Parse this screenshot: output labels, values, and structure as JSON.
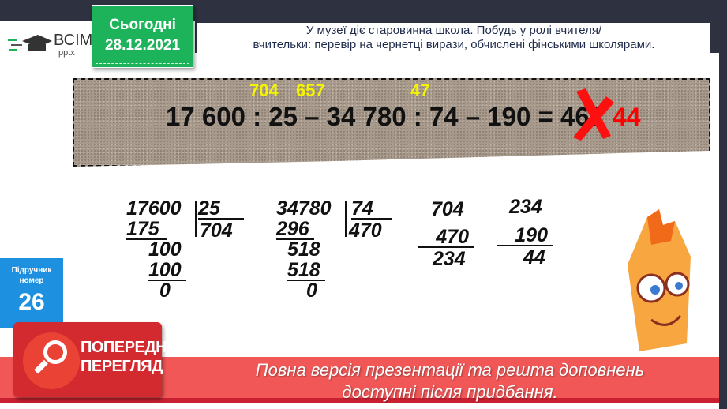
{
  "header": {
    "logo_text": "ВСІМ",
    "logo_sub": "pptx",
    "date_label": "Сьогодні",
    "date": "28.12.2021",
    "task_line1": "У музеї діє старовинна школа. Побудь у ролі вчителя/",
    "task_line2": "вчительки: перевір на чернетці вирази, обчислені фінськими школярами."
  },
  "equation": {
    "text": "17 600 : 25 – 34 780 : 74 – 190 = 467",
    "hint1": "704",
    "hint2": "657",
    "hint3": "47",
    "correction": "44"
  },
  "calc1": {
    "dividend": "17600",
    "divisor": "25",
    "quotient": "704",
    "rows": [
      "175",
      "100",
      "100",
      "0"
    ]
  },
  "calc2": {
    "dividend": "34780",
    "divisor": "74",
    "quotient": "470",
    "rows": [
      "296",
      "518",
      "518",
      "0"
    ]
  },
  "calc3": {
    "a": "704",
    "b": "470",
    "r": "234"
  },
  "calc4": {
    "a": "234",
    "b": "190",
    "r": "44"
  },
  "textbook": {
    "label1": "Підручник",
    "label2": "номер",
    "number": "26"
  },
  "preview": {
    "line1": "ПОПЕРЕДНІЙ",
    "line2": "ПЕРЕГЛЯД",
    "banner1": "Повна версія презентації та решта доповнень",
    "banner2": "доступні після придбання."
  },
  "colors": {
    "accent_green": "#1db35a",
    "banner_red": "#f25757",
    "correction_red": "#ff0000",
    "hint_yellow": "#f5f500"
  }
}
